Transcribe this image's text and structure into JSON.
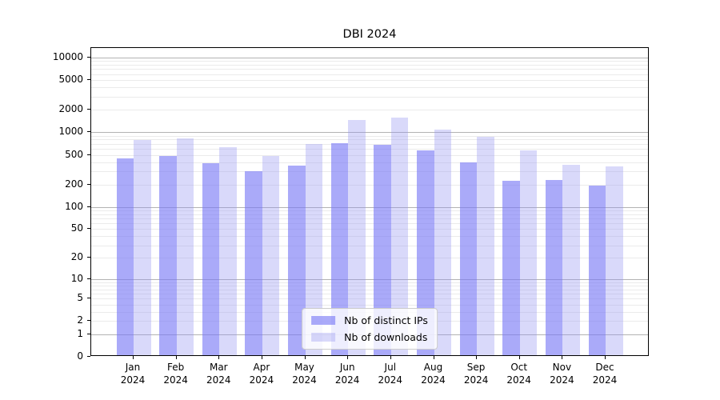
{
  "title": "DBI 2024",
  "chart_data": {
    "type": "bar",
    "title": "DBI 2024",
    "categories": [
      "Jan",
      "Feb",
      "Mar",
      "Apr",
      "May",
      "Jun",
      "Jul",
      "Aug",
      "Sep",
      "Oct",
      "Nov",
      "Dec"
    ],
    "category_year": "2024",
    "series": [
      {
        "name": "Nb of distinct IPs",
        "color": "rgba(120,120,245,0.63)",
        "values": [
          430,
          460,
          365,
          290,
          340,
          680,
          650,
          545,
          380,
          215,
          220,
          185
        ]
      },
      {
        "name": "Nb of downloads",
        "color": "rgba(150,150,240,0.36)",
        "values": [
          755,
          790,
          605,
          460,
          665,
          1390,
          1510,
          1030,
          840,
          545,
          350,
          330
        ]
      }
    ],
    "xlabel": "",
    "ylabel": "",
    "y_scale": "log1p",
    "y_ticks": [
      0,
      1,
      2,
      5,
      10,
      20,
      50,
      100,
      200,
      500,
      1000,
      2000,
      5000,
      10000
    ],
    "y_max": 13400,
    "grid": true,
    "legend_position": "lower center",
    "colors": {
      "bar_distinct_ips": "rgba(120,120,245,0.63)",
      "bar_downloads": "rgba(150,150,240,0.36)",
      "major_grid": "#b3b3b3",
      "minor_grid": "#ebebeb",
      "axis": "#000000",
      "background": "#ffffff"
    }
  }
}
